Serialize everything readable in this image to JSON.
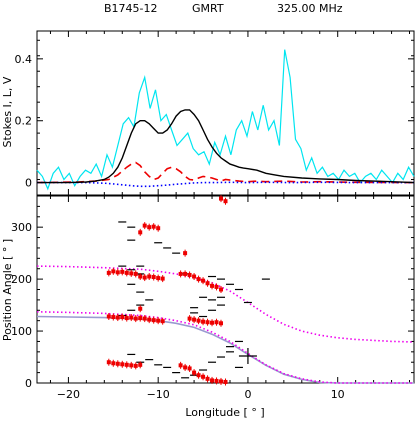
{
  "header": {
    "pulsar": "B1745-12",
    "telescope": "GMRT",
    "frequency": "325.00 MHz"
  },
  "chart_data": [
    {
      "type": "line",
      "panel": "profile",
      "xlabel": "",
      "ylabel": "Stokes I, L, V",
      "xlim": [
        -23.5,
        18.5
      ],
      "ylim": [
        -0.04,
        0.49
      ],
      "xticks": [
        -20,
        -10,
        0,
        10
      ],
      "yticks": [
        0,
        0.2,
        0.4
      ],
      "ytick_labels": [
        "0",
        "0.2",
        "0.4"
      ],
      "colors": {
        "I": "#000000",
        "L": "#00e5f0",
        "V": "#0000ff",
        "extra": "#ee0000"
      },
      "series": [
        {
          "key": "I",
          "style": "solid",
          "x": [
            -23.5,
            -20,
            -18,
            -17,
            -16,
            -15.5,
            -15,
            -14.5,
            -14,
            -13.5,
            -13,
            -12.5,
            -12,
            -11.5,
            -11,
            -10.5,
            -10,
            -9.5,
            -9,
            -8.5,
            -8,
            -7.5,
            -7,
            -6.5,
            -6,
            -5.5,
            -5,
            -4.5,
            -4,
            -3.5,
            -3,
            -2.5,
            -2,
            -1.5,
            -1,
            -0.5,
            0,
            1,
            2,
            3,
            4,
            6,
            8,
            10,
            12,
            14,
            16,
            18.5
          ],
          "y": [
            0,
            0,
            0.002,
            0.005,
            0.01,
            0.018,
            0.03,
            0.05,
            0.08,
            0.12,
            0.16,
            0.19,
            0.2,
            0.2,
            0.19,
            0.175,
            0.16,
            0.16,
            0.17,
            0.19,
            0.215,
            0.23,
            0.235,
            0.235,
            0.22,
            0.2,
            0.17,
            0.14,
            0.115,
            0.095,
            0.08,
            0.07,
            0.06,
            0.055,
            0.05,
            0.047,
            0.045,
            0.04,
            0.03,
            0.025,
            0.02,
            0.015,
            0.012,
            0.01,
            0.007,
            0.005,
            0.003,
            0
          ]
        },
        {
          "key": "L",
          "style": "solid",
          "x": [
            -23.5,
            -22.9,
            -22.3,
            -21.7,
            -21.1,
            -20.5,
            -19.9,
            -19.3,
            -18.7,
            -18.1,
            -17.5,
            -16.9,
            -16.3,
            -15.7,
            -15.1,
            -14.5,
            -13.9,
            -13.3,
            -12.7,
            -12.1,
            -11.5,
            -10.9,
            -10.3,
            -9.7,
            -9.1,
            -8.5,
            -7.9,
            -7.3,
            -6.7,
            -6.1,
            -5.5,
            -4.9,
            -4.3,
            -3.7,
            -3.1,
            -2.5,
            -1.9,
            -1.3,
            -0.7,
            -0.1,
            0.5,
            1.1,
            1.7,
            2.3,
            2.9,
            3.5,
            4.1,
            4.7,
            5.3,
            5.9,
            6.5,
            7.1,
            7.7,
            8.3,
            8.9,
            9.5,
            10.1,
            10.7,
            11.3,
            11.9,
            12.5,
            13.1,
            13.7,
            14.3,
            14.9,
            15.5,
            16.1,
            16.7,
            17.3,
            17.9,
            18.5
          ],
          "y": [
            0.04,
            0.02,
            -0.02,
            0.03,
            0.05,
            0.01,
            0.03,
            -0.01,
            0.02,
            0.04,
            0.03,
            0.06,
            0.02,
            0.09,
            0.05,
            0.12,
            0.19,
            0.21,
            0.18,
            0.29,
            0.34,
            0.24,
            0.3,
            0.2,
            0.22,
            0.17,
            0.12,
            0.14,
            0.16,
            0.11,
            0.09,
            0.1,
            0.06,
            0.13,
            0.09,
            0.15,
            0.09,
            0.17,
            0.2,
            0.15,
            0.23,
            0.17,
            0.25,
            0.17,
            0.2,
            0.12,
            0.43,
            0.34,
            0.14,
            0.11,
            0.04,
            0.08,
            0.03,
            0.05,
            0.02,
            0.03,
            0.01,
            0.04,
            0.02,
            0.03,
            0.0,
            0.02,
            0.03,
            0.01,
            0.04,
            0.02,
            0.0,
            0.03,
            0.01,
            0.05,
            0.02
          ]
        },
        {
          "key": "V",
          "style": "dotted",
          "x": [
            -23.5,
            -18,
            -16,
            -15,
            -14,
            -13,
            -12,
            -11,
            -10,
            -9,
            -8,
            -7,
            -6,
            -5,
            -4,
            -2,
            0,
            2,
            5,
            8,
            12,
            18.5
          ],
          "y": [
            0,
            0,
            -0.002,
            -0.004,
            -0.007,
            -0.01,
            -0.012,
            -0.012,
            -0.01,
            -0.008,
            -0.005,
            -0.003,
            -0.001,
            0,
            0,
            0.001,
            0,
            0.001,
            0,
            0.001,
            0,
            0
          ]
        },
        {
          "key": "extra",
          "style": "dashed",
          "x": [
            -23.5,
            -19,
            -17,
            -15.5,
            -14.5,
            -13.5,
            -13,
            -12.5,
            -12,
            -11.5,
            -11,
            -10.5,
            -10,
            -9.5,
            -9,
            -8.5,
            -8,
            -7.5,
            -7,
            -6.5,
            -6,
            -5.5,
            -5,
            -4.5,
            -4,
            -3.5,
            -3,
            -2.5,
            -2,
            -1,
            0,
            1,
            2,
            4,
            6,
            8,
            12,
            18.5
          ],
          "y": [
            0,
            0.002,
            0.005,
            0.01,
            0.025,
            0.05,
            0.06,
            0.065,
            0.055,
            0.035,
            0.02,
            0.01,
            0.015,
            0.03,
            0.045,
            0.05,
            0.045,
            0.035,
            0.02,
            0.01,
            0.008,
            0.015,
            0.02,
            0.018,
            0.015,
            0.01,
            0.005,
            0.01,
            0.008,
            0.005,
            0.003,
            0.005,
            0.003,
            0.005,
            0.002,
            0.003,
            0.001,
            0
          ]
        }
      ]
    },
    {
      "type": "scatter",
      "panel": "position-angle",
      "xlabel": "Longitude [ ° ]",
      "ylabel": "Position Angle [ ° ]",
      "xlim": [
        -23.5,
        18.5
      ],
      "ylim": [
        0,
        360
      ],
      "xticks": [
        -20,
        -10,
        0,
        10
      ],
      "xtick_labels": [
        "−20",
        "−10",
        "0",
        "10"
      ],
      "yticks": [
        0,
        100,
        200,
        300
      ],
      "ytick_labels": [
        "0",
        "100",
        "200",
        "300"
      ],
      "colors": {
        "points": "#ee0000",
        "mirror_points": "#000000",
        "fit": "#ee00ee",
        "fit_main": "#9a9ad0"
      },
      "points": {
        "x": [
          -15.5,
          -15,
          -14.5,
          -14,
          -13.5,
          -13,
          -12.5,
          -15.5,
          -15,
          -14.5,
          -14,
          -13.5,
          -13,
          -12.5,
          -12,
          -15.5,
          -15,
          -14.5,
          -14,
          -13.5,
          -13,
          -12.5,
          -12,
          -12,
          -11.5,
          -11,
          -10.5,
          -10,
          -12,
          -11.5,
          -11,
          -10.5,
          -10,
          -9.5,
          -12,
          -11.5,
          -11,
          -10.5,
          -10,
          -9.5,
          -7.5,
          -7,
          -6.5,
          -6,
          -5.5,
          -5,
          -4.5,
          -4,
          -3.5,
          -3,
          -6.5,
          -6,
          -5.5,
          -5,
          -4.5,
          -4,
          -3.5,
          -3,
          -7.5,
          -7,
          -6.5,
          -6,
          -5.5,
          -5,
          -4.5,
          -4,
          -3.5,
          -3,
          -2.5,
          -7,
          -3,
          -2.5
        ],
        "y": [
          212,
          215,
          213,
          214,
          212,
          211,
          210,
          128,
          127,
          126,
          127,
          125,
          126,
          124,
          125,
          40,
          38,
          37,
          36,
          35,
          34,
          33,
          35,
          290,
          303,
          300,
          301,
          298,
          143,
          124,
          122,
          121,
          120,
          119,
          205,
          203,
          205,
          204,
          202,
          201,
          210,
          210,
          208,
          205,
          200,
          197,
          192,
          187,
          185,
          180,
          124,
          122,
          120,
          118,
          117,
          116,
          117,
          115,
          34,
          30,
          28,
          20,
          15,
          12,
          8,
          5,
          4,
          3,
          2,
          250,
          355,
          350
        ]
      },
      "mirror_points": {
        "x": [
          -14,
          -13,
          -12,
          -13,
          -12,
          -11,
          -14,
          -13,
          -12,
          -13,
          -11,
          -12,
          -10,
          -9,
          -8,
          -7,
          -6,
          -5,
          -4,
          -3,
          -2,
          -1,
          -4,
          -3,
          -5,
          -4,
          -6,
          -5,
          -7,
          -4,
          -3,
          -2,
          -1,
          0,
          2,
          -2,
          -1,
          -6,
          -3,
          -8,
          -9,
          -10,
          -13,
          -12,
          -14,
          -13
        ],
        "y": [
          225,
          218,
          210,
          190,
          175,
          160,
          130,
          140,
          150,
          55,
          45,
          40,
          35,
          30,
          20,
          10,
          15,
          25,
          40,
          50,
          60,
          30,
          140,
          150,
          165,
          160,
          135,
          128,
          210,
          205,
          200,
          190,
          180,
          155,
          200,
          70,
          80,
          145,
          165,
          250,
          260,
          270,
          275,
          225,
          310,
          300
        ]
      },
      "error_bar": {
        "x": 0,
        "y": 52
      },
      "fit_upper": {
        "x": [
          -23.5,
          -20,
          -16,
          -12,
          -10,
          -8,
          -6,
          -4,
          -2,
          0,
          2,
          4,
          6,
          8,
          10,
          12,
          14,
          16,
          18.5
        ],
        "y": [
          225,
          224,
          222,
          219,
          215,
          210,
          203,
          193,
          177,
          155,
          132,
          113,
          100,
          92,
          87,
          84,
          82,
          80,
          79
        ]
      },
      "fit_lower": {
        "x": [
          -23.5,
          -20,
          -16,
          -12,
          -10,
          -8,
          -6,
          -4,
          -2,
          0,
          2,
          4,
          6,
          8,
          10,
          12,
          14,
          16,
          18.5
        ],
        "y": [
          137,
          136,
          134,
          130,
          126,
          120,
          112,
          98,
          80,
          57,
          35,
          18,
          8,
          2,
          0,
          0,
          0,
          0,
          0
        ]
      },
      "fit_main": {
        "x": [
          -23.5,
          -20,
          -16,
          -12,
          -10,
          -8,
          -6,
          -4,
          -2,
          0,
          2,
          4,
          6,
          8,
          10,
          12,
          14,
          16,
          18.5
        ],
        "y": [
          128,
          127,
          126,
          123,
          120,
          115,
          107,
          94,
          77,
          55,
          34,
          17,
          7,
          1,
          0,
          0,
          0,
          0,
          0
        ]
      }
    }
  ]
}
